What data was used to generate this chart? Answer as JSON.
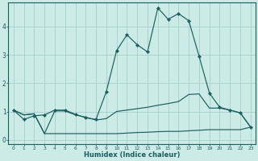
{
  "xlabel": "Humidex (Indice chaleur)",
  "bg_color": "#cceae6",
  "grid_color": "#aad4d0",
  "line_color": "#1a5f5f",
  "xlim": [
    -0.5,
    23.5
  ],
  "ylim": [
    -0.15,
    4.85
  ],
  "x_ticks": [
    0,
    1,
    2,
    3,
    4,
    5,
    6,
    7,
    8,
    9,
    10,
    11,
    12,
    13,
    14,
    15,
    16,
    17,
    18,
    19,
    20,
    21,
    22,
    23
  ],
  "y_ticks": [
    0,
    1,
    2,
    3,
    4
  ],
  "series1_x": [
    0,
    1,
    2,
    3,
    4,
    5,
    6,
    7,
    8,
    9,
    10,
    11,
    12,
    13,
    14,
    15,
    16,
    17,
    18,
    19,
    20,
    21,
    22,
    23
  ],
  "series1_y": [
    1.05,
    0.72,
    0.85,
    0.88,
    1.05,
    1.05,
    0.9,
    0.78,
    0.72,
    1.7,
    3.15,
    3.7,
    3.35,
    3.1,
    4.65,
    4.25,
    4.45,
    4.2,
    2.95,
    1.65,
    1.15,
    1.05,
    0.95,
    0.45
  ],
  "series2_x": [
    0,
    1,
    2,
    3,
    4,
    5,
    6,
    7,
    8,
    9,
    10,
    11,
    12,
    13,
    14,
    15,
    16,
    17,
    18,
    19,
    20,
    21,
    22,
    23
  ],
  "series2_y": [
    1.05,
    0.88,
    0.92,
    0.22,
    1.02,
    1.02,
    0.88,
    0.8,
    0.7,
    0.75,
    1.0,
    1.05,
    1.1,
    1.15,
    1.22,
    1.28,
    1.35,
    1.6,
    1.62,
    1.12,
    1.12,
    1.05,
    0.95,
    0.45
  ],
  "series3_x": [
    0,
    1,
    2,
    3,
    4,
    5,
    6,
    7,
    8,
    9,
    10,
    11,
    12,
    13,
    14,
    15,
    16,
    17,
    18,
    19,
    20,
    21,
    22,
    23
  ],
  "series3_y": [
    1.05,
    0.88,
    0.92,
    0.22,
    0.22,
    0.22,
    0.22,
    0.22,
    0.22,
    0.22,
    0.22,
    0.24,
    0.26,
    0.27,
    0.29,
    0.3,
    0.3,
    0.32,
    0.34,
    0.36,
    0.36,
    0.36,
    0.36,
    0.45
  ]
}
